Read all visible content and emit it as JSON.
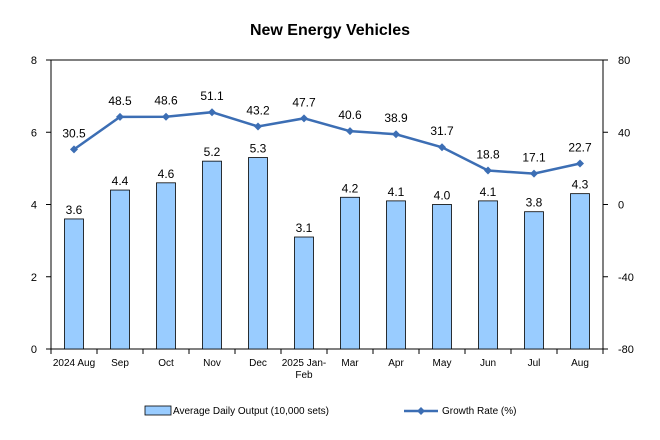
{
  "chart_data": {
    "type": "bar",
    "title": "New Energy Vehicles",
    "categories": [
      [
        "2024 Aug"
      ],
      [
        "Sep"
      ],
      [
        "Oct"
      ],
      [
        "Nov"
      ],
      [
        "Dec"
      ],
      [
        "2025 Jan-",
        "Feb"
      ],
      [
        "Mar"
      ],
      [
        "Apr"
      ],
      [
        "May"
      ],
      [
        "Jun"
      ],
      [
        "Jul"
      ],
      [
        "Aug"
      ]
    ],
    "series": [
      {
        "name": "Average Daily Output (10,000 sets)",
        "type": "bar",
        "axis": "left",
        "color": "#99ccff",
        "values": [
          3.6,
          4.4,
          4.6,
          5.2,
          5.3,
          3.1,
          4.2,
          4.1,
          4.0,
          4.1,
          3.8,
          4.3
        ],
        "labels": [
          "3.6",
          "4.4",
          "4.6",
          "5.2",
          "5.3",
          "3.1",
          "4.2",
          "4.1",
          "4.0",
          "4.1",
          "3.8",
          "4.3"
        ]
      },
      {
        "name": "Growth Rate (%)",
        "type": "line",
        "axis": "right",
        "color": "#3c6eb4",
        "values": [
          30.5,
          48.5,
          48.6,
          51.1,
          43.2,
          47.7,
          40.6,
          38.9,
          31.7,
          18.8,
          17.1,
          22.7
        ],
        "labels": [
          "30.5",
          "48.5",
          "48.6",
          "51.1",
          "43.2",
          "47.7",
          "40.6",
          "38.9",
          "31.7",
          "18.8",
          "17.1",
          "22.7"
        ]
      }
    ],
    "y_left": {
      "min": 0,
      "max": 8,
      "ticks": [
        "0",
        "2",
        "4",
        "6",
        "8"
      ]
    },
    "y_right": {
      "min": -80,
      "max": 80,
      "ticks": [
        "-80",
        "-40",
        "0",
        "40",
        "80"
      ]
    },
    "grid": false,
    "legend_position": "bottom"
  }
}
